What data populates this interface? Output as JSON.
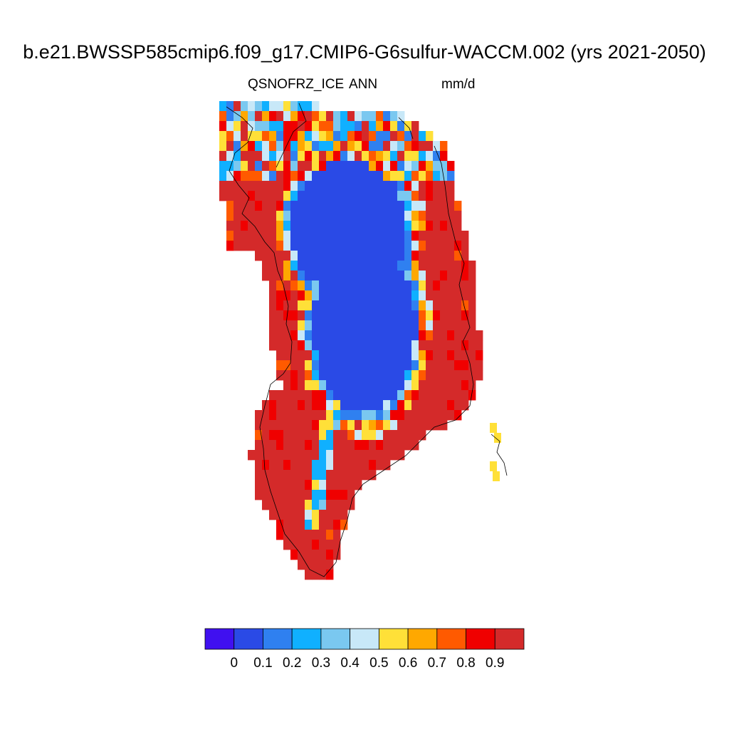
{
  "figure": {
    "title": "b.e21.BWSSP585cmip6.f09_g17.CMIP6-G6sulfur-WACCM.002 (yrs 2021-2050)",
    "variable": "QSNOFRZ_ICE",
    "period": "ANN",
    "units": "mm/d"
  },
  "colorbar": {
    "colors": [
      "#4010f0",
      "#2a4ae6",
      "#2f80f0",
      "#10b0ff",
      "#7ac8f0",
      "#c8e8f8",
      "#ffe038",
      "#ffa800",
      "#ff5a00",
      "#f00000",
      "#d42a2a"
    ],
    "labels": [
      "0",
      "0.1",
      "0.2",
      "0.3",
      "0.4",
      "0.5",
      "0.6",
      "0.7",
      "0.8",
      "0.9"
    ]
  },
  "chart_data": {
    "type": "heatmap",
    "title": "b.e21.BWSSP585cmip6.f09_g17.CMIP6-G6sulfur-WACCM.002 (yrs 2021-2050)",
    "variable": "QSNOFRZ_ICE",
    "season": "ANN",
    "units": "mm/d",
    "region": "Greenland",
    "levels": [
      0,
      0.1,
      0.2,
      0.3,
      0.4,
      0.5,
      0.6,
      0.7,
      0.8,
      0.9
    ],
    "colors": [
      "#4010f0",
      "#2a4ae6",
      "#2f80f0",
      "#10b0ff",
      "#7ac8f0",
      "#c8e8f8",
      "#ffe038",
      "#ffa800",
      "#ff5a00",
      "#f00000",
      "#d42a2a"
    ],
    "pattern": "interior ice sheet 0.1-0.2 mm/d, margins 0.5-0.9 mm/d, southern coast above 0.9 mm/d"
  }
}
